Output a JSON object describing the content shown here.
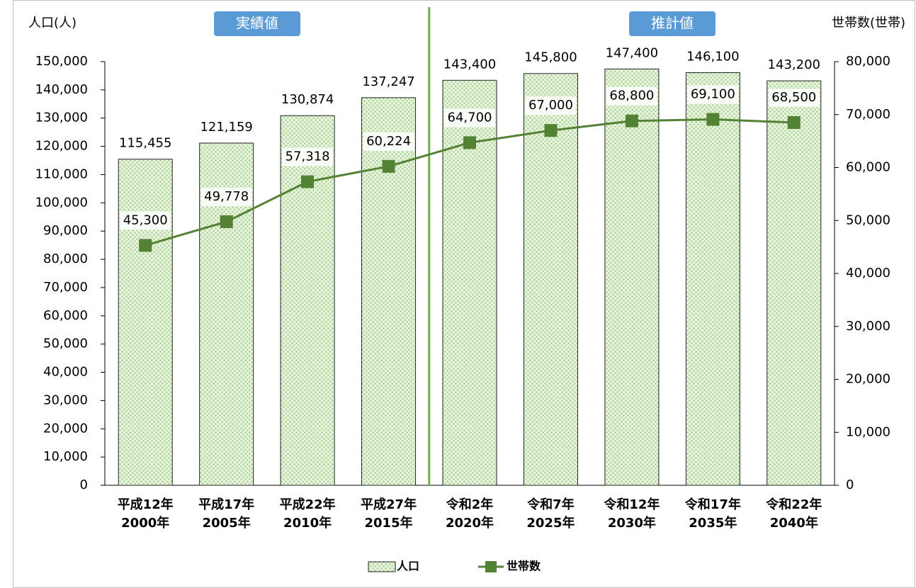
{
  "chart_data": {
    "type": "combo",
    "y_label": "人口(人)",
    "y2_label": "世帯数(世帯)",
    "annotations": [
      "実績値",
      "推計値"
    ],
    "categories": [
      [
        "平成12年",
        "2000年"
      ],
      [
        "平成17年",
        "2005年"
      ],
      [
        "平成22年",
        "2010年"
      ],
      [
        "平成27年",
        "2015年"
      ],
      [
        "令和2年",
        "2020年"
      ],
      [
        "令和7年",
        "2025年"
      ],
      [
        "令和12年",
        "2030年"
      ],
      [
        "令和17年",
        "2035年"
      ],
      [
        "令和22年",
        "2040年"
      ]
    ],
    "series": [
      {
        "name": "人口",
        "type": "bar",
        "axis": "y",
        "color": "#a9d18e",
        "values": [
          115455,
          121159,
          130874,
          137247,
          143400,
          145800,
          147400,
          146100,
          143200
        ],
        "value_labels": [
          "115,455",
          "121,159",
          "130,874",
          "137,247",
          "143,400",
          "145,800",
          "147,400",
          "146,100",
          "143,200"
        ]
      },
      {
        "name": "世帯数",
        "type": "line",
        "axis": "y2",
        "color": "#548235",
        "values": [
          45300,
          49778,
          57318,
          60224,
          64700,
          67000,
          68800,
          69100,
          68500
        ],
        "value_labels": [
          "45,300",
          "49,778",
          "57,318",
          "60,224",
          "64,700",
          "67,000",
          "68,800",
          "69,100",
          "68,500"
        ]
      }
    ],
    "ylim": [
      0,
      150000
    ],
    "yticks": [
      0,
      {
        "value": 10000,
        "label": "10,000"
      },
      {
        "value": 20000,
        "label": "20,000"
      },
      {
        "value": 30000,
        "label": "30,000"
      },
      {
        "value": 40000,
        "label": "40,000"
      },
      {
        "value": 50000,
        "label": "50,000"
      },
      {
        "value": 60000,
        "label": "60,000"
      },
      {
        "value": 70000,
        "label": "70,000"
      },
      {
        "value": 80000,
        "label": "80,000"
      },
      {
        "value": 90000,
        "label": "90,000"
      },
      {
        "value": 100000,
        "label": "100,000"
      },
      {
        "value": 110000,
        "label": "110,000"
      },
      {
        "value": 120000,
        "label": "120,000"
      },
      {
        "value": 130000,
        "label": "130,000"
      },
      {
        "value": 140000,
        "label": "140,000"
      },
      {
        "value": 150000,
        "label": "150,000"
      }
    ],
    "y2lim": [
      0,
      80000
    ],
    "y2ticks": [
      0,
      {
        "value": 10000,
        "label": "10,000"
      },
      {
        "value": 20000,
        "label": "20,000"
      },
      {
        "value": 30000,
        "label": "30,000"
      },
      {
        "value": 40000,
        "label": "40,000"
      },
      {
        "value": 50000,
        "label": "50,000"
      },
      {
        "value": 60000,
        "label": "60,000"
      },
      {
        "value": 70000,
        "label": "70,000"
      },
      {
        "value": 80000,
        "label": "80,000"
      }
    ],
    "legend": "bottom"
  }
}
